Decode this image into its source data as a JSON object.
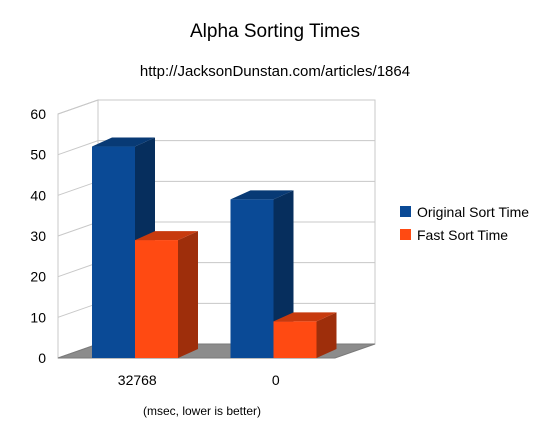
{
  "chart_data": {
    "type": "bar",
    "title": "Alpha Sorting Times",
    "subtitle": "http://JacksonDunstan.com/articles/1864",
    "xlabel": "(msec, lower is better)",
    "ylabel": "",
    "categories": [
      "32768",
      "0"
    ],
    "series": [
      {
        "name": "Original Sort Time",
        "values": [
          52,
          39
        ],
        "color": "#0a4a96"
      },
      {
        "name": "Fast Sort Time",
        "values": [
          29,
          9
        ],
        "color": "#ff4a12"
      }
    ],
    "ylim": [
      0,
      60
    ],
    "yticks": [
      "0",
      "10",
      "20",
      "30",
      "40",
      "50",
      "60"
    ],
    "grid": true,
    "three_d": true,
    "legend_position": "right"
  }
}
